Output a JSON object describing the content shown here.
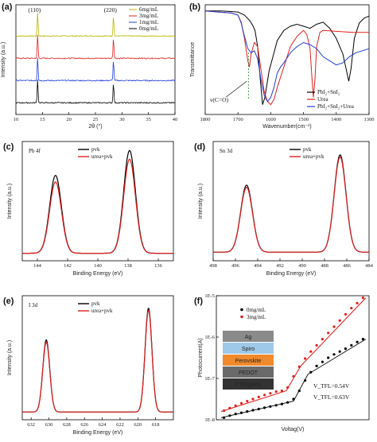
{
  "chart_data": [
    {
      "panel": "(a)",
      "type": "line",
      "xlabel": "2θ (°)",
      "ylabel": "Intensity (a.u.)",
      "xlim": [
        10,
        40
      ],
      "xticks": [
        10,
        15,
        20,
        25,
        30,
        35,
        40
      ],
      "annotations": [
        "(110)",
        "(220)"
      ],
      "peak_positions": [
        14.1,
        28.4
      ],
      "series": [
        {
          "name": "6mg/mL",
          "color": "#b8b800",
          "offset": 4
        },
        {
          "name": "3mg/mL",
          "color": "#e02020",
          "offset": 3
        },
        {
          "name": "1mg/mL",
          "color": "#1e3cd6",
          "offset": 2
        },
        {
          "name": "0mg/mL",
          "color": "#000000",
          "offset": 1
        }
      ]
    },
    {
      "panel": "(b)",
      "type": "line",
      "xlabel": "Wavenumber(cm⁻¹)",
      "ylabel": "Transmittance",
      "xlim": [
        1800,
        1300
      ],
      "xticks": [
        1800,
        1700,
        1600,
        1500,
        1400,
        1300
      ],
      "annotations": [
        "ν(C=O)"
      ],
      "series": [
        {
          "name": "PbI₂+SnI₂",
          "color": "#000000",
          "x": [
            1800,
            1750,
            1700,
            1680,
            1665,
            1655,
            1648,
            1640,
            1632,
            1625,
            1618,
            1605,
            1590,
            1580,
            1560,
            1540,
            1520,
            1500,
            1480,
            1460,
            1440,
            1420,
            1400,
            1380,
            1370,
            1362,
            1355,
            1345,
            1330,
            1315,
            1300
          ],
          "y": [
            0.97,
            0.97,
            0.96,
            0.93,
            0.88,
            0.83,
            0.78,
            0.62,
            0.3,
            0.05,
            0.12,
            0.38,
            0.56,
            0.68,
            0.78,
            0.82,
            0.84,
            0.82,
            0.8,
            0.84,
            0.86,
            0.8,
            0.7,
            0.55,
            0.4,
            0.28,
            0.4,
            0.7,
            0.85,
            0.9,
            0.92
          ]
        },
        {
          "name": "Urea",
          "color": "#e02020",
          "x": [
            1800,
            1760,
            1720,
            1700,
            1690,
            1680,
            1670,
            1665,
            1660,
            1650,
            1640,
            1630,
            1620,
            1610,
            1600,
            1590,
            1580,
            1560,
            1540,
            1520,
            1500,
            1490,
            1480,
            1475,
            1470,
            1465,
            1460,
            1450,
            1440,
            1400,
            1350,
            1300
          ],
          "y": [
            0.97,
            0.96,
            0.95,
            0.93,
            0.86,
            0.7,
            0.48,
            0.42,
            0.55,
            0.66,
            0.62,
            0.4,
            0.18,
            0.08,
            0.05,
            0.1,
            0.22,
            0.42,
            0.62,
            0.72,
            0.78,
            0.74,
            0.6,
            0.35,
            0.12,
            0.3,
            0.62,
            0.76,
            0.78,
            0.77,
            0.76,
            0.76
          ]
        },
        {
          "name": "PbI₂+SnI₂+Urea",
          "color": "#1e3cd6",
          "x": [
            1800,
            1760,
            1720,
            1700,
            1690,
            1680,
            1670,
            1660,
            1650,
            1640,
            1630,
            1620,
            1610,
            1600,
            1590,
            1580,
            1570,
            1560,
            1540,
            1520,
            1500,
            1480,
            1460,
            1440,
            1420,
            1400,
            1380,
            1360,
            1340,
            1320,
            1300
          ],
          "y": [
            0.97,
            0.96,
            0.95,
            0.93,
            0.85,
            0.72,
            0.6,
            0.56,
            0.58,
            0.5,
            0.3,
            0.14,
            0.08,
            0.12,
            0.22,
            0.36,
            0.42,
            0.46,
            0.56,
            0.62,
            0.66,
            0.64,
            0.6,
            0.52,
            0.48,
            0.44,
            0.46,
            0.52,
            0.56,
            0.58,
            0.6
          ]
        }
      ]
    },
    {
      "panel": "(c)",
      "type": "line",
      "title": "Pb 4f",
      "xlabel": "Binding Energy (eV)",
      "ylabel": "Intensity (a.u.)",
      "xlim": [
        145,
        135
      ],
      "xticks": [
        144,
        142,
        140,
        138,
        136
      ],
      "series": [
        {
          "name": "pvk",
          "color": "#000000",
          "peaks": [
            {
              "center": 142.8,
              "height": 0.72,
              "width": 0.55
            },
            {
              "center": 137.9,
              "height": 0.95,
              "width": 0.55
            }
          ],
          "baseline": 0.04
        },
        {
          "name": "urea+pvk",
          "color": "#e02020",
          "peaks": [
            {
              "center": 142.8,
              "height": 0.66,
              "width": 0.55
            },
            {
              "center": 137.9,
              "height": 0.87,
              "width": 0.55
            }
          ],
          "baseline": 0.04
        }
      ]
    },
    {
      "panel": "(d)",
      "type": "line",
      "title": "Sn 3d",
      "xlabel": "Binding Energy (eV)",
      "ylabel": "Intensity (a.u.)",
      "xlim": [
        498,
        484
      ],
      "xticks": [
        498,
        496,
        494,
        492,
        490,
        488,
        486,
        484
      ],
      "series": [
        {
          "name": "pvk",
          "color": "#000000",
          "peaks": [
            {
              "center": 495.0,
              "height": 0.62,
              "width": 0.75
            },
            {
              "center": 486.6,
              "height": 0.9,
              "width": 0.75
            }
          ],
          "baseline": 0.05
        },
        {
          "name": "urea+pvk",
          "color": "#e02020",
          "peaks": [
            {
              "center": 495.0,
              "height": 0.6,
              "width": 0.75
            },
            {
              "center": 486.6,
              "height": 0.88,
              "width": 0.75
            }
          ],
          "baseline": 0.05
        }
      ]
    },
    {
      "panel": "(e)",
      "type": "line",
      "title": "I 3d",
      "xlabel": "Binding Energy (eV)",
      "ylabel": "Intensity (a.u.)",
      "xlim": [
        633,
        616
      ],
      "xticks": [
        632,
        630,
        628,
        626,
        624,
        622,
        620,
        618
      ],
      "series": [
        {
          "name": "pvk",
          "color": "#000000",
          "peaks": [
            {
              "center": 630.3,
              "height": 0.64,
              "width": 0.55
            },
            {
              "center": 618.8,
              "height": 0.92,
              "width": 0.55
            }
          ],
          "baseline": 0.04
        },
        {
          "name": "urea+pvk",
          "color": "#e02020",
          "peaks": [
            {
              "center": 630.3,
              "height": 0.62,
              "width": 0.55
            },
            {
              "center": 618.8,
              "height": 0.9,
              "width": 0.55
            }
          ],
          "baseline": 0.04
        }
      ]
    },
    {
      "panel": "(f)",
      "type": "scatter",
      "xlabel": "Voltag(V)",
      "ylabel": "Photocurrent(A)",
      "yscale": "log",
      "yticks": [
        "1E-8",
        "1E-7",
        "1E-6",
        "1E-5"
      ],
      "ylim_exp": [
        -8,
        -5
      ],
      "device_stack": [
        "Ag",
        "Spiro",
        "Perovskite",
        "PEDOT",
        "FTO/glass"
      ],
      "annotations": [
        "V_TFL=0.54V",
        "V_TFL=0.63V"
      ],
      "series": [
        {
          "name": "0mg/mL",
          "color": "#000000",
          "x": [
            0.02,
            0.06,
            0.1,
            0.14,
            0.18,
            0.22,
            0.26,
            0.3,
            0.34,
            0.38,
            0.42,
            0.46,
            0.5,
            0.54,
            0.58,
            0.62,
            0.66,
            0.7,
            0.74,
            0.78,
            0.82,
            0.86,
            0.9,
            0.94,
            0.98
          ],
          "y_exp": [
            -7.95,
            -7.9,
            -7.86,
            -7.83,
            -7.8,
            -7.77,
            -7.74,
            -7.71,
            -7.68,
            -7.65,
            -7.62,
            -7.58,
            -7.5,
            -7.3,
            -7.05,
            -6.85,
            -6.7,
            -6.6,
            -6.5,
            -6.42,
            -6.35,
            -6.28,
            -6.2,
            -6.12,
            -6.05
          ]
        },
        {
          "name": "3mg/mL",
          "color": "#e02020",
          "x": [
            0.02,
            0.06,
            0.1,
            0.14,
            0.18,
            0.22,
            0.26,
            0.3,
            0.34,
            0.38,
            0.42,
            0.46,
            0.5,
            0.54,
            0.58,
            0.62,
            0.66,
            0.7,
            0.74,
            0.78,
            0.82,
            0.86,
            0.9,
            0.94,
            0.98
          ],
          "y_exp": [
            -7.78,
            -7.72,
            -7.66,
            -7.6,
            -7.55,
            -7.5,
            -7.45,
            -7.4,
            -7.36,
            -7.32,
            -7.3,
            -7.22,
            -6.95,
            -6.72,
            -6.52,
            -6.35,
            -6.2,
            -6.05,
            -5.9,
            -5.75,
            -5.6,
            -5.45,
            -5.3,
            -5.18,
            -5.05
          ]
        }
      ]
    }
  ]
}
